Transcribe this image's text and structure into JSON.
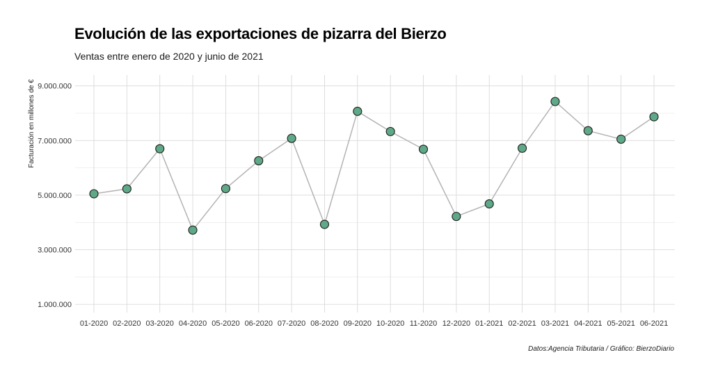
{
  "title": "Evolución de las exportaciones de pizarra del Bierzo",
  "subtitle": "Ventas entre enero de 2020 y junio de 2021",
  "caption": "Datos:Agencia Tributaria / Gráfico: BierzoDiario",
  "colors": {
    "point_fill": "#5fa888",
    "point_stroke": "#1a1a1a",
    "line": "#b3b3b3",
    "grid_major": "#d9d9d9",
    "grid_minor": "#ebebeb"
  },
  "chart_data": {
    "type": "line",
    "xlabel": "",
    "ylabel": "Facturación en millones de €",
    "categories": [
      "01-2020",
      "02-2020",
      "03-2020",
      "04-2020",
      "05-2020",
      "06-2020",
      "07-2020",
      "08-2020",
      "09-2020",
      "10-2020",
      "11-2020",
      "12-2020",
      "01-2021",
      "02-2021",
      "03-2021",
      "04-2021",
      "05-2021",
      "06-2021"
    ],
    "values": [
      5050000,
      5230000,
      6700000,
      3720000,
      5240000,
      6260000,
      7080000,
      3930000,
      8070000,
      7330000,
      6680000,
      4220000,
      4680000,
      6720000,
      8430000,
      7360000,
      7050000,
      7870000
    ],
    "ylim": [
      700000,
      9400000
    ],
    "yticks": [
      1000000,
      3000000,
      5000000,
      7000000,
      9000000
    ],
    "ytick_labels": [
      "1.000.000",
      "3.000.000",
      "5.000.000",
      "7.000.000",
      "9.000.000"
    ],
    "grid": true,
    "markers": true,
    "legend": "none"
  }
}
